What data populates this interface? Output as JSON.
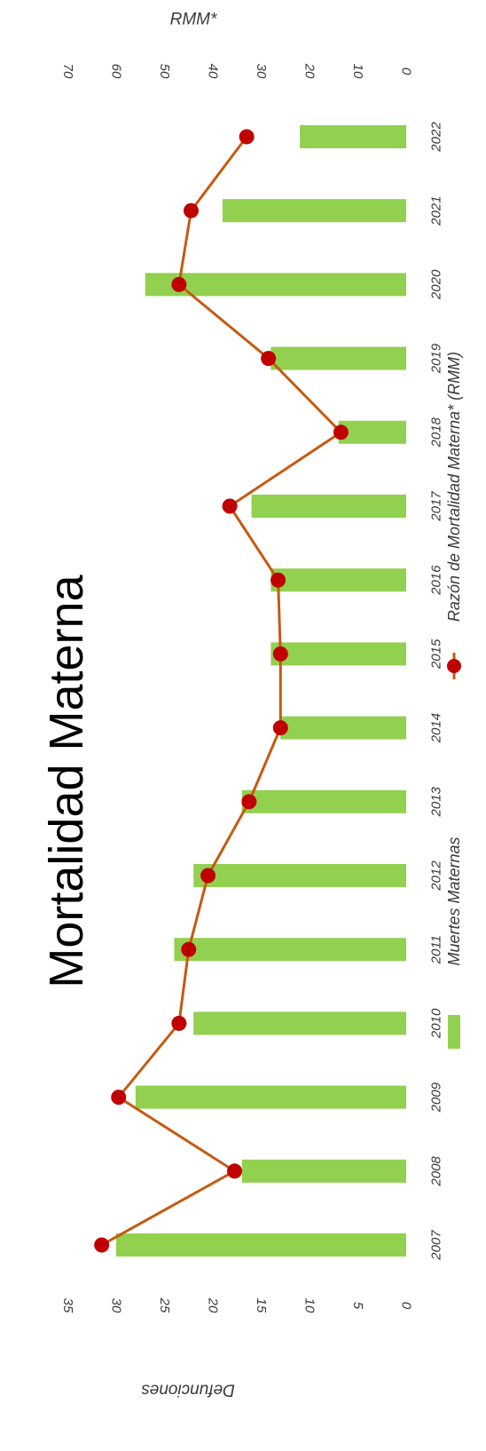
{
  "chart_data": {
    "type": "bar",
    "title": "Mortalidad Materna",
    "categories": [
      "2007",
      "2008",
      "2009",
      "2010",
      "2011",
      "2012",
      "2013",
      "2014",
      "2015",
      "2016",
      "2017",
      "2018",
      "2019",
      "2020",
      "2021",
      "2022"
    ],
    "series": [
      {
        "name": "Muertes Maternas",
        "type": "bar",
        "axis": "Defunciones",
        "values": [
          30,
          17,
          28,
          22,
          24,
          22,
          17,
          13,
          14,
          14,
          16,
          7,
          14,
          27,
          19,
          11
        ]
      },
      {
        "name": "Razón de Mortalidad Materna* (RMM)",
        "type": "line",
        "axis": "RMM*",
        "values": [
          63,
          35.5,
          59.5,
          47,
          45,
          41,
          32.5,
          26,
          26,
          26.5,
          36.5,
          13.5,
          28.5,
          47,
          44.5,
          33
        ]
      }
    ],
    "left_axis": {
      "label": "Defunciones",
      "ticks": [
        "0",
        "5",
        "10",
        "15",
        "20",
        "25",
        "30",
        "35"
      ],
      "range": [
        0,
        35
      ]
    },
    "right_axis": {
      "label": "RMM*",
      "ticks": [
        "0",
        "10",
        "20",
        "30",
        "40",
        "50",
        "60",
        "70"
      ],
      "range": [
        0,
        70
      ]
    },
    "legend_position": "bottom",
    "grid": false,
    "colors": {
      "bar": "#92d050",
      "line": "#c55a11",
      "marker": "#c00000"
    }
  }
}
